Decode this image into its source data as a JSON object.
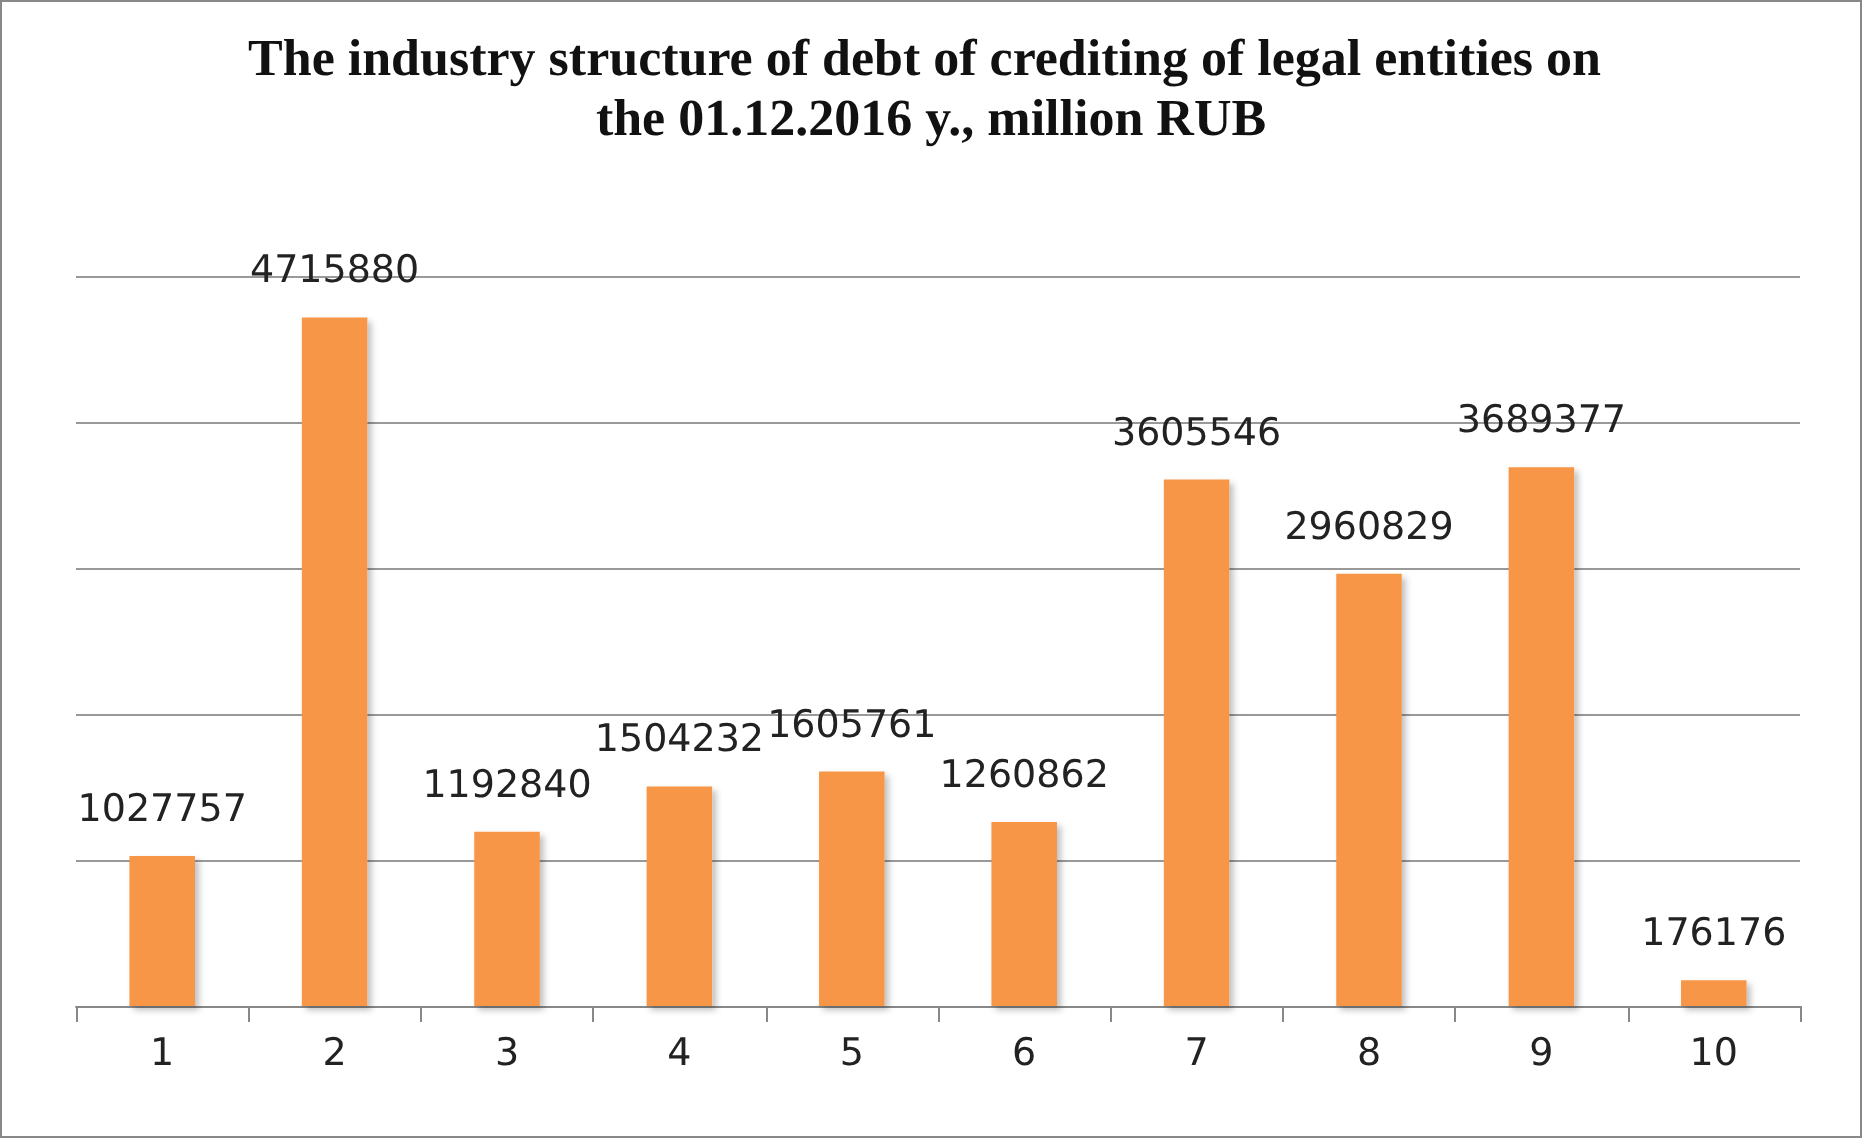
{
  "chart_data": {
    "type": "bar",
    "title": "The industry structure of debt of crediting of legal entities on the 01.12.2016 y., million RUB",
    "categories": [
      "1",
      "2",
      "3",
      "4",
      "5",
      "6",
      "7",
      "8",
      "9",
      "10"
    ],
    "values": [
      1027757,
      4715880,
      1192840,
      1504232,
      1605761,
      1260862,
      3605546,
      2960829,
      3689377,
      176176
    ],
    "color": "#f79646",
    "ylim": [
      0,
      5000000
    ],
    "yticks": [
      {
        "value": 0,
        "label": null
      },
      {
        "value": 1000000,
        "label": null
      },
      {
        "value": 2000000,
        "label": null
      },
      {
        "value": 3000000,
        "label": null
      },
      {
        "value": 4000000,
        "label": null
      },
      {
        "value": 5000000,
        "label": null
      }
    ],
    "tick_labels": "x",
    "grid": "y",
    "data_labels": true
  }
}
